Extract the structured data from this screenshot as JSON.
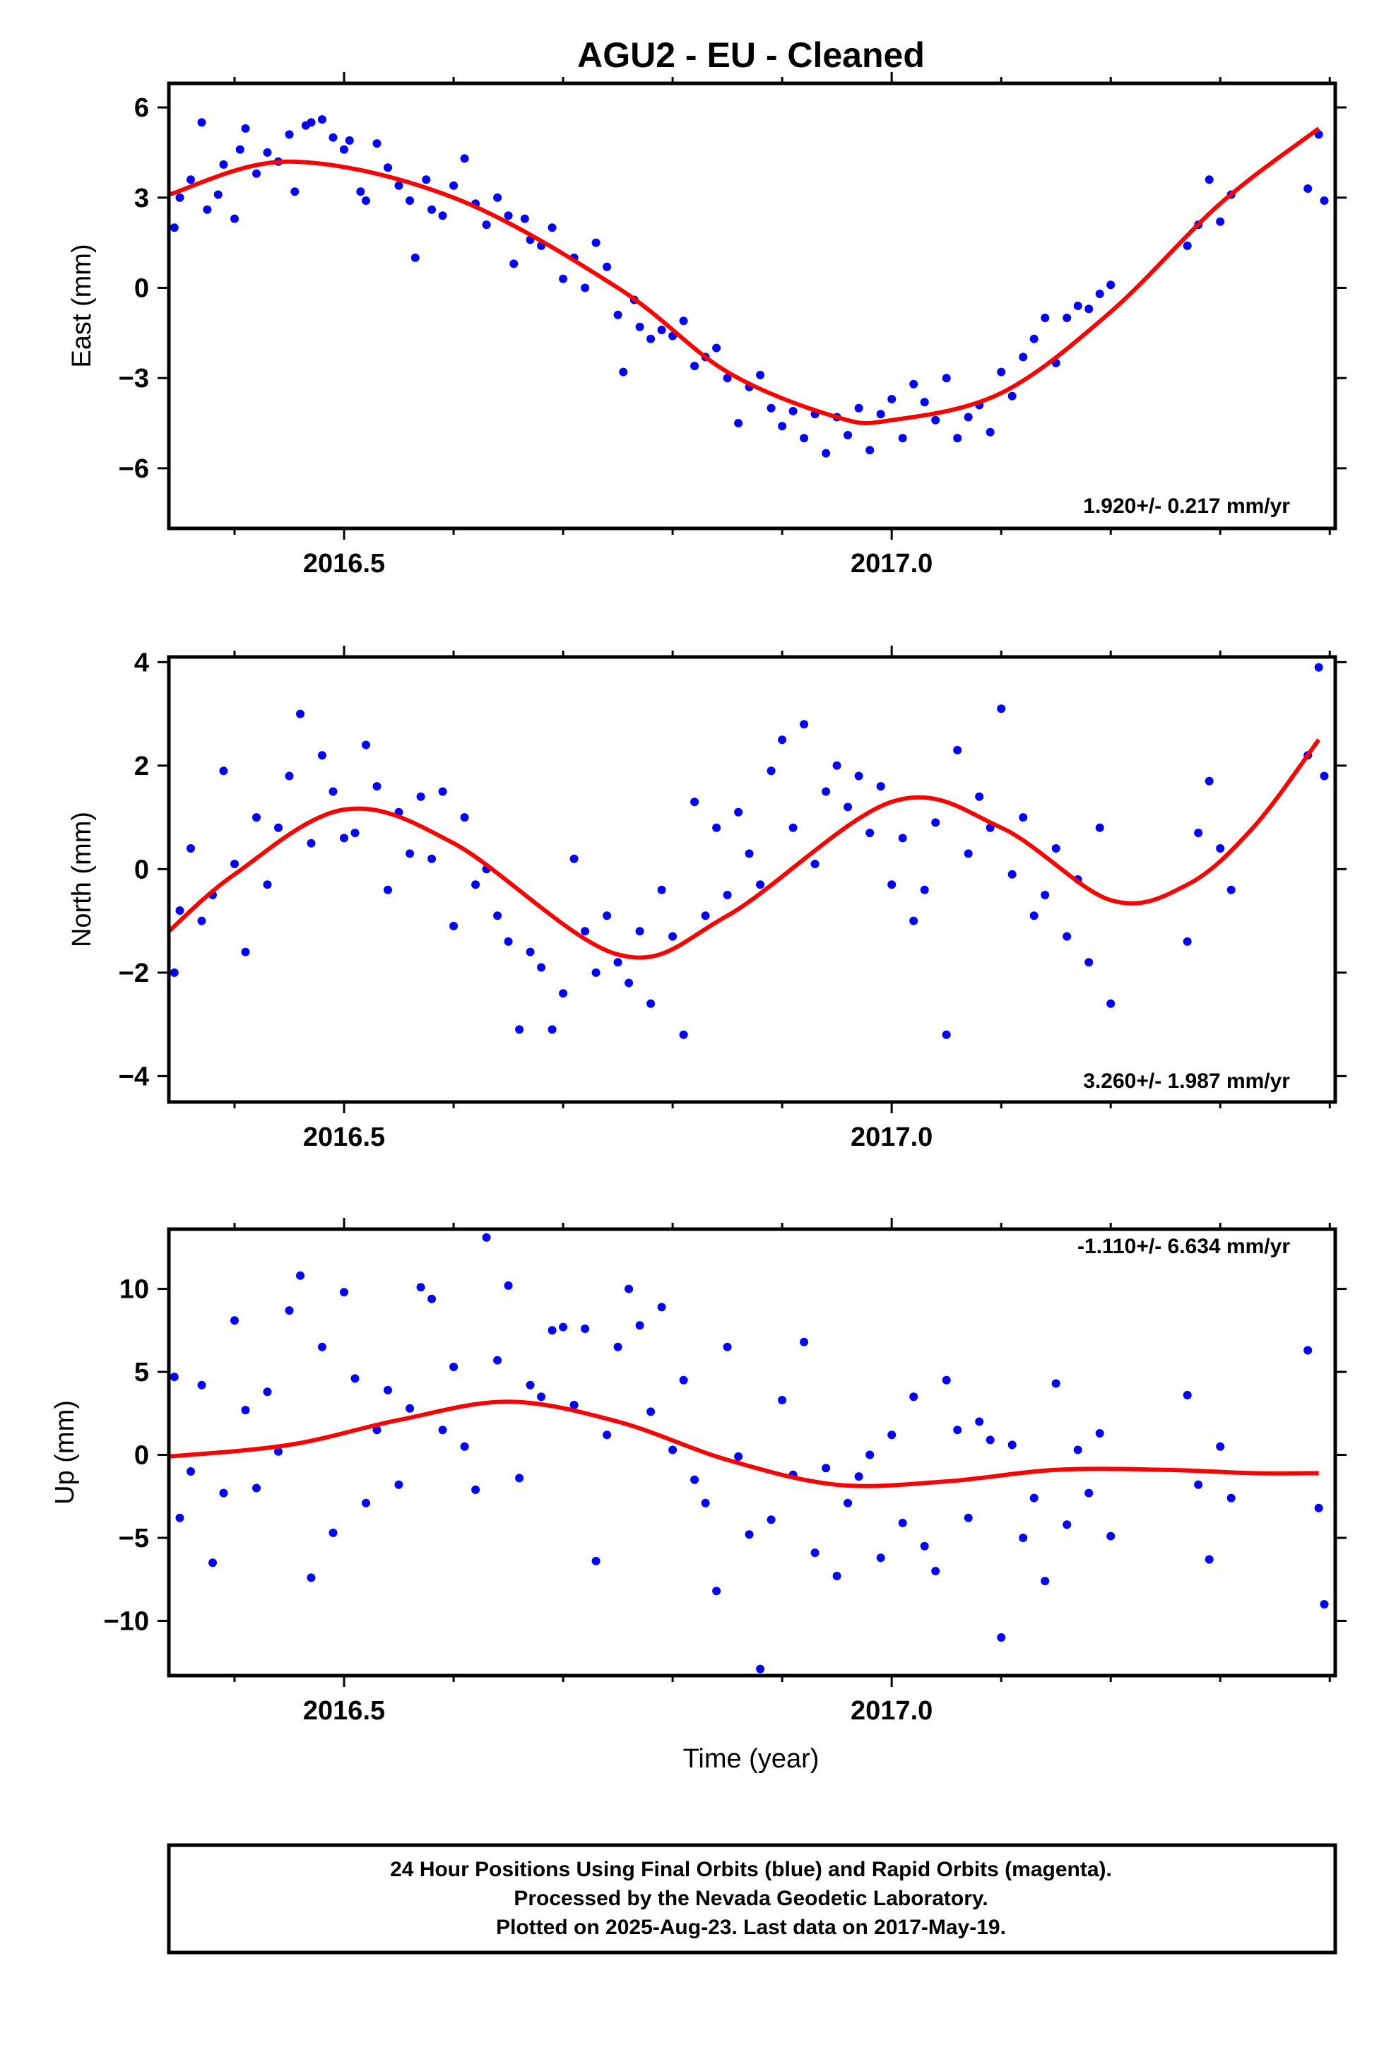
{
  "title": "AGU2  - EU - Cleaned",
  "xlabel": "Time (year)",
  "footer": {
    "line1": "24 Hour Positions Using Final Orbits (blue) and Rapid Orbits (magenta).",
    "line2": "Processed by the Nevada Geodetic Laboratory.",
    "line3": "Plotted on 2025-Aug-23. Last data on 2017-May-19."
  },
  "colors": {
    "points": "#0000ff",
    "fit": "#ff0000",
    "frame": "#000000"
  },
  "chart_data": [
    {
      "type": "scatter",
      "ylabel": "East (mm)",
      "rate_label": "1.920+/- 0.217 mm/yr",
      "xlim": [
        2016.34,
        2017.405
      ],
      "ylim": [
        -8,
        6.8
      ],
      "x_ticks": [
        2016.5,
        2017.0
      ],
      "x_tick_labels": [
        "2016.5",
        "2017.0"
      ],
      "y_ticks": [
        -6,
        -3,
        0,
        3,
        6
      ],
      "y_tick_labels": [
        "−6",
        "−3",
        "0",
        "3",
        "6"
      ],
      "fit_x": [
        2016.34,
        2016.45,
        2016.6,
        2016.75,
        2016.85,
        2016.95,
        2017.0,
        2017.1,
        2017.2,
        2017.3,
        2017.39
      ],
      "fit_y": [
        3.1,
        4.2,
        3.0,
        0.0,
        -2.8,
        -4.3,
        -4.4,
        -3.5,
        -0.8,
        2.8,
        5.3
      ],
      "series": [
        {
          "x": [
            2016.345,
            2016.35,
            2016.36,
            2016.37,
            2016.375,
            2016.385,
            2016.39,
            2016.4,
            2016.405,
            2016.41,
            2016.42,
            2016.43,
            2016.44,
            2016.45,
            2016.455,
            2016.465,
            2016.47,
            2016.48,
            2016.49,
            2016.5,
            2016.505,
            2016.515,
            2016.52,
            2016.53,
            2016.54,
            2016.55,
            2016.56,
            2016.565,
            2016.575,
            2016.58,
            2016.59,
            2016.6,
            2016.61,
            2016.62,
            2016.63,
            2016.64,
            2016.65,
            2016.655,
            2016.665,
            2016.67,
            2016.68,
            2016.69,
            2016.7,
            2016.71,
            2016.72,
            2016.73,
            2016.74,
            2016.75,
            2016.755,
            2016.765,
            2016.77,
            2016.78,
            2016.79,
            2016.8,
            2016.81,
            2016.82,
            2016.83,
            2016.84,
            2016.85,
            2016.86,
            2016.87,
            2016.88,
            2016.89,
            2016.9,
            2016.91,
            2016.92,
            2016.93,
            2016.94,
            2016.95,
            2016.96,
            2016.97,
            2016.98,
            2016.99,
            2017.0,
            2017.01,
            2017.02,
            2017.03,
            2017.04,
            2017.05,
            2017.06,
            2017.07,
            2017.08,
            2017.09,
            2017.1,
            2017.11,
            2017.12,
            2017.13,
            2017.14,
            2017.15,
            2017.16,
            2017.17,
            2017.18,
            2017.19,
            2017.2,
            2017.27,
            2017.28,
            2017.29,
            2017.3,
            2017.31,
            2017.38,
            2017.39,
            2017.395
          ],
          "y": [
            2.0,
            3.0,
            3.6,
            5.5,
            2.6,
            3.1,
            4.1,
            2.3,
            4.6,
            5.3,
            3.8,
            4.5,
            4.2,
            5.1,
            3.2,
            5.4,
            5.5,
            5.6,
            5.0,
            4.6,
            4.9,
            3.2,
            2.9,
            4.8,
            4.0,
            3.4,
            2.9,
            1.0,
            3.6,
            2.6,
            2.4,
            3.4,
            4.3,
            2.8,
            2.1,
            3.0,
            2.4,
            0.8,
            2.3,
            1.6,
            1.4,
            2.0,
            0.3,
            1.0,
            0.0,
            1.5,
            0.7,
            -0.9,
            -2.8,
            -0.4,
            -1.3,
            -1.7,
            -1.4,
            -1.6,
            -1.1,
            -2.6,
            -2.3,
            -2.0,
            -3.0,
            -4.5,
            -3.3,
            -2.9,
            -4.0,
            -4.6,
            -4.1,
            -5.0,
            -4.2,
            -5.5,
            -4.3,
            -4.9,
            -4.0,
            -5.4,
            -4.2,
            -3.7,
            -5.0,
            -3.2,
            -3.8,
            -4.4,
            -3.0,
            -5.0,
            -4.3,
            -3.9,
            -4.8,
            -2.8,
            -3.6,
            -2.3,
            -1.7,
            -1.0,
            -2.5,
            -1.0,
            -0.6,
            -0.7,
            -0.2,
            0.1,
            1.4,
            2.1,
            3.6,
            2.2,
            3.1,
            3.3,
            5.1,
            2.9
          ]
        }
      ]
    },
    {
      "type": "scatter",
      "ylabel": "North (mm)",
      "rate_label": "3.260+/- 1.987 mm/yr",
      "xlim": [
        2016.34,
        2017.405
      ],
      "ylim": [
        -4.5,
        4.1
      ],
      "x_ticks": [
        2016.5,
        2017.0
      ],
      "x_tick_labels": [
        "2016.5",
        "2017.0"
      ],
      "y_ticks": [
        -4,
        -2,
        0,
        2,
        4
      ],
      "y_tick_labels": [
        "−4",
        "−2",
        "0",
        "2",
        "4"
      ],
      "fit_x": [
        2016.34,
        2016.4,
        2016.5,
        2016.6,
        2016.75,
        2016.85,
        2017.0,
        2017.1,
        2017.2,
        2017.27,
        2017.33,
        2017.39
      ],
      "fit_y": [
        -1.2,
        -0.1,
        1.15,
        0.5,
        -1.65,
        -0.9,
        1.3,
        0.8,
        -0.6,
        -0.3,
        0.8,
        2.5
      ],
      "series": [
        {
          "x": [
            2016.345,
            2016.35,
            2016.36,
            2016.37,
            2016.38,
            2016.39,
            2016.4,
            2016.41,
            2016.42,
            2016.43,
            2016.44,
            2016.45,
            2016.46,
            2016.47,
            2016.48,
            2016.49,
            2016.5,
            2016.51,
            2016.52,
            2016.53,
            2016.54,
            2016.55,
            2016.56,
            2016.57,
            2016.58,
            2016.59,
            2016.6,
            2016.61,
            2016.62,
            2016.63,
            2016.64,
            2016.65,
            2016.66,
            2016.67,
            2016.68,
            2016.69,
            2016.7,
            2016.71,
            2016.72,
            2016.73,
            2016.74,
            2016.75,
            2016.76,
            2016.77,
            2016.78,
            2016.79,
            2016.8,
            2016.81,
            2016.82,
            2016.83,
            2016.84,
            2016.85,
            2016.86,
            2016.87,
            2016.88,
            2016.89,
            2016.9,
            2016.91,
            2016.92,
            2016.93,
            2016.94,
            2016.95,
            2016.96,
            2016.97,
            2016.98,
            2016.99,
            2017.0,
            2017.01,
            2017.02,
            2017.03,
            2017.04,
            2017.05,
            2017.06,
            2017.07,
            2017.08,
            2017.09,
            2017.1,
            2017.11,
            2017.12,
            2017.13,
            2017.14,
            2017.15,
            2017.16,
            2017.17,
            2017.18,
            2017.19,
            2017.2,
            2017.27,
            2017.28,
            2017.29,
            2017.3,
            2017.31,
            2017.38,
            2017.39,
            2017.395
          ],
          "y": [
            -2.0,
            -0.8,
            0.4,
            -1.0,
            -0.5,
            1.9,
            0.1,
            -1.6,
            1.0,
            -0.3,
            0.8,
            1.8,
            3.0,
            0.5,
            2.2,
            1.5,
            0.6,
            0.7,
            2.4,
            1.6,
            -0.4,
            1.1,
            0.3,
            1.4,
            0.2,
            1.5,
            -1.1,
            1.0,
            -0.3,
            0.0,
            -0.9,
            -1.4,
            -3.1,
            -1.6,
            -1.9,
            -3.1,
            -2.4,
            0.2,
            -1.2,
            -2.0,
            -0.9,
            -1.8,
            -2.2,
            -1.2,
            -2.6,
            -0.4,
            -1.3,
            -3.2,
            1.3,
            -0.9,
            0.8,
            -0.5,
            1.1,
            0.3,
            -0.3,
            1.9,
            2.5,
            0.8,
            2.8,
            0.1,
            1.5,
            2.0,
            1.2,
            1.8,
            0.7,
            1.6,
            -0.3,
            0.6,
            -1.0,
            -0.4,
            0.9,
            -3.2,
            2.3,
            0.3,
            1.4,
            0.8,
            3.1,
            -0.1,
            1.0,
            -0.9,
            -0.5,
            0.4,
            -1.3,
            -0.2,
            -1.8,
            0.8,
            -2.6,
            -1.4,
            0.7,
            1.7,
            0.4,
            -0.4,
            2.2,
            3.9,
            1.8
          ]
        }
      ]
    },
    {
      "type": "scatter",
      "ylabel": "Up (mm)",
      "rate_label": "-1.110+/- 6.634 mm/yr",
      "xlim": [
        2016.34,
        2017.405
      ],
      "ylim": [
        -13.3,
        13.6
      ],
      "x_ticks": [
        2016.5,
        2017.0
      ],
      "x_tick_labels": [
        "2016.5",
        "2017.0"
      ],
      "y_ticks": [
        -10,
        -5,
        0,
        5,
        10
      ],
      "y_tick_labels": [
        "−10",
        "−5",
        "0",
        "5",
        "10"
      ],
      "fit_x": [
        2016.34,
        2016.45,
        2016.55,
        2016.65,
        2016.75,
        2016.85,
        2016.95,
        2017.05,
        2017.15,
        2017.25,
        2017.33,
        2017.39
      ],
      "fit_y": [
        -0.1,
        0.6,
        2.1,
        3.2,
        2.0,
        -0.3,
        -1.8,
        -1.6,
        -0.9,
        -0.9,
        -1.1,
        -1.1
      ],
      "series": [
        {
          "x": [
            2016.345,
            2016.35,
            2016.36,
            2016.37,
            2016.38,
            2016.39,
            2016.4,
            2016.41,
            2016.42,
            2016.43,
            2016.44,
            2016.45,
            2016.46,
            2016.47,
            2016.48,
            2016.49,
            2016.5,
            2016.51,
            2016.52,
            2016.53,
            2016.54,
            2016.55,
            2016.56,
            2016.57,
            2016.58,
            2016.59,
            2016.6,
            2016.61,
            2016.62,
            2016.63,
            2016.64,
            2016.65,
            2016.66,
            2016.67,
            2016.68,
            2016.69,
            2016.7,
            2016.71,
            2016.72,
            2016.73,
            2016.74,
            2016.75,
            2016.76,
            2016.77,
            2016.78,
            2016.79,
            2016.8,
            2016.81,
            2016.82,
            2016.83,
            2016.84,
            2016.85,
            2016.86,
            2016.87,
            2016.88,
            2016.89,
            2016.9,
            2016.91,
            2016.92,
            2016.93,
            2016.94,
            2016.95,
            2016.96,
            2016.97,
            2016.98,
            2016.99,
            2017.0,
            2017.01,
            2017.02,
            2017.03,
            2017.04,
            2017.05,
            2017.06,
            2017.07,
            2017.08,
            2017.09,
            2017.1,
            2017.11,
            2017.12,
            2017.13,
            2017.14,
            2017.15,
            2017.16,
            2017.17,
            2017.18,
            2017.19,
            2017.2,
            2017.27,
            2017.28,
            2017.29,
            2017.3,
            2017.31,
            2017.38,
            2017.39,
            2017.395
          ],
          "y": [
            4.7,
            -3.8,
            -1.0,
            4.2,
            -6.5,
            -2.3,
            8.1,
            2.7,
            -2.0,
            3.8,
            0.2,
            8.7,
            10.8,
            -7.4,
            6.5,
            -4.7,
            9.8,
            4.6,
            -2.9,
            1.5,
            3.9,
            -1.8,
            2.8,
            10.1,
            9.4,
            1.5,
            5.3,
            0.5,
            -2.1,
            13.1,
            5.7,
            10.2,
            -1.4,
            4.2,
            3.5,
            7.5,
            7.7,
            3.0,
            7.6,
            -6.4,
            1.2,
            6.5,
            10.0,
            7.8,
            2.6,
            8.9,
            0.3,
            4.5,
            -1.5,
            -2.9,
            -8.2,
            6.5,
            -0.1,
            -4.8,
            -12.9,
            -3.9,
            3.3,
            -1.2,
            6.8,
            -5.9,
            -0.8,
            -7.3,
            -2.9,
            -1.3,
            0.0,
            -6.2,
            1.2,
            -4.1,
            3.5,
            -5.5,
            -7.0,
            4.5,
            1.5,
            -3.8,
            2.0,
            0.9,
            -11.0,
            0.6,
            -5.0,
            -2.6,
            -7.6,
            4.3,
            -4.2,
            0.3,
            -2.3,
            1.3,
            -4.9,
            3.6,
            -1.8,
            -6.3,
            0.5,
            -2.6,
            6.3,
            -3.2,
            -9.0
          ]
        }
      ]
    }
  ]
}
